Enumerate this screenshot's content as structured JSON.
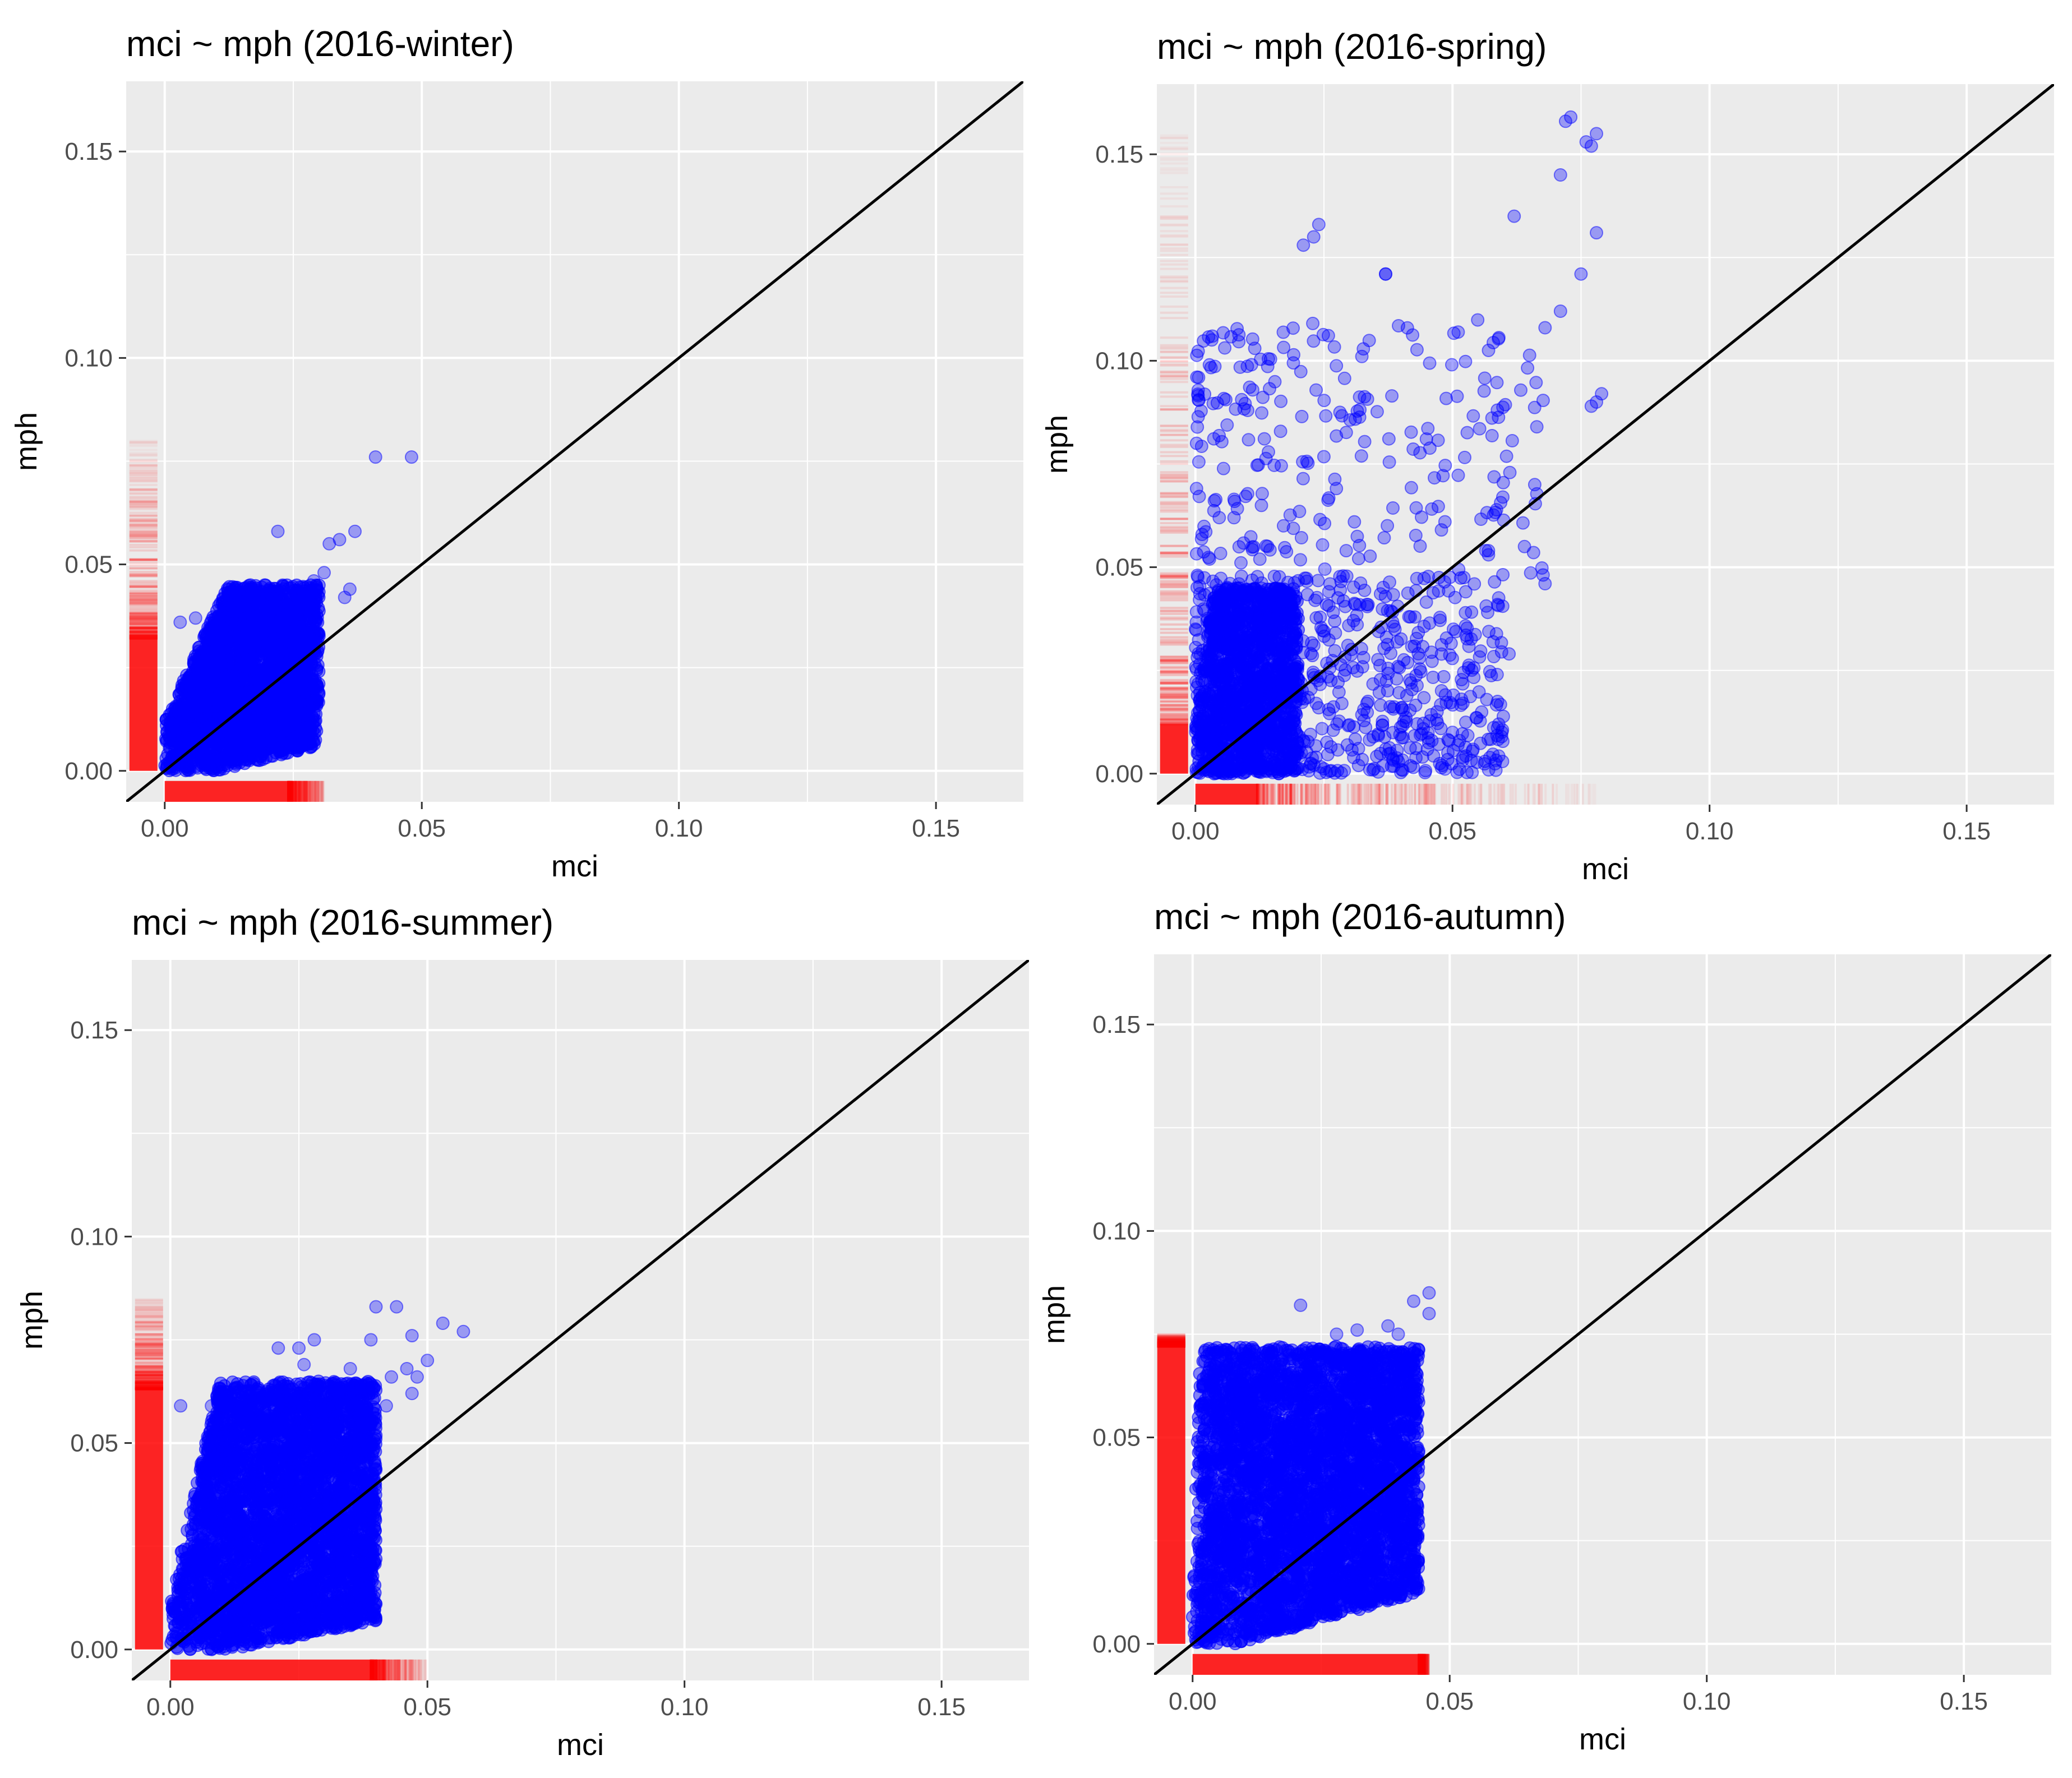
{
  "chart_data": [
    {
      "type": "scatter",
      "title": "mci ~ mph (2016-winter)",
      "xlabel": "mci",
      "ylabel": "mph",
      "xlim": [
        -0.0075,
        0.167
      ],
      "ylim": [
        -0.0075,
        0.167
      ],
      "xticks": [
        "0.00",
        "0.05",
        "0.10",
        "0.15"
      ],
      "yticks": [
        "0.00",
        "0.05",
        "0.10",
        "0.15"
      ],
      "reference_line": "y = x",
      "point_color": "#0000ff",
      "rug_color": "#ff0000",
      "cloud": {
        "x_max": 0.03,
        "y_max": 0.045,
        "y_min_ratio": 0.3,
        "y_max_ratio": 2.7,
        "count": 2600
      },
      "outliers": [
        [
          0.041,
          0.076
        ],
        [
          0.048,
          0.076
        ],
        [
          0.037,
          0.058
        ],
        [
          0.034,
          0.056
        ],
        [
          0.032,
          0.055
        ],
        [
          0.022,
          0.058
        ],
        [
          0.036,
          0.044
        ],
        [
          0.035,
          0.042
        ],
        [
          0.029,
          0.046
        ],
        [
          0.031,
          0.048
        ],
        [
          0.003,
          0.036
        ],
        [
          0.006,
          0.037
        ]
      ],
      "x_rug": {
        "dense_max": 0.024,
        "fade_max": 0.031
      },
      "y_rug": {
        "dense_max": 0.032,
        "fade_max": 0.08
      }
    },
    {
      "type": "scatter",
      "title": "mci ~ mph (2016-spring)",
      "xlabel": "mci",
      "ylabel": "mph",
      "xlim": [
        -0.0075,
        0.167
      ],
      "ylim": [
        -0.0075,
        0.167
      ],
      "xticks": [
        "0.00",
        "0.05",
        "0.10",
        "0.15"
      ],
      "yticks": [
        "0.00",
        "0.05",
        "0.10",
        "0.15"
      ],
      "reference_line": "y = x",
      "point_color": "#0000ff",
      "rug_color": "#ff0000",
      "cloud": {
        "x_max": 0.02,
        "y_max": 0.045,
        "y_min_ratio": 0.0,
        "y_max_ratio": 9.0,
        "count": 1200
      },
      "scatter_extra": {
        "count": 750,
        "x_max": 0.06,
        "y_max": 0.048
      },
      "scatter_sparse": {
        "count": 260,
        "x_max": 0.068,
        "y_max": 0.11
      },
      "outliers": [
        [
          0.072,
          0.158
        ],
        [
          0.073,
          0.159
        ],
        [
          0.078,
          0.155
        ],
        [
          0.077,
          0.152
        ],
        [
          0.076,
          0.153
        ],
        [
          0.071,
          0.145
        ],
        [
          0.078,
          0.131
        ],
        [
          0.062,
          0.135
        ],
        [
          0.075,
          0.121
        ],
        [
          0.024,
          0.133
        ],
        [
          0.023,
          0.13
        ],
        [
          0.021,
          0.128
        ],
        [
          0.037,
          0.121
        ],
        [
          0.037,
          0.121
        ],
        [
          0.071,
          0.112
        ],
        [
          0.068,
          0.108
        ],
        [
          0.079,
          0.092
        ],
        [
          0.078,
          0.09
        ],
        [
          0.077,
          0.089
        ],
        [
          0.066,
          0.07
        ],
        [
          0.068,
          0.046
        ],
        [
          0.064,
          0.055
        ],
        [
          0.057,
          0.054
        ],
        [
          0.057,
          0.053
        ],
        [
          0.061,
          0.029
        ],
        [
          0.059,
          0.012
        ],
        [
          0.052,
          0.004
        ],
        [
          0.048,
          0.002
        ],
        [
          0.046,
          0.008
        ],
        [
          0.05,
          0.01
        ]
      ],
      "x_rug": {
        "dense_max": 0.012,
        "fade_max": 0.078
      },
      "y_rug": {
        "dense_max": 0.012,
        "fade_max": 0.155
      }
    },
    {
      "type": "scatter",
      "title": "mci ~ mph (2016-summer)",
      "xlabel": "mci",
      "ylabel": "mph",
      "xlim": [
        -0.0075,
        0.167
      ],
      "ylim": [
        -0.0075,
        0.167
      ],
      "xticks": [
        "0.00",
        "0.05",
        "0.10",
        "0.15"
      ],
      "yticks": [
        "0.00",
        "0.05",
        "0.10",
        "0.15"
      ],
      "reference_line": "y = x",
      "point_color": "#0000ff",
      "rug_color": "#ff0000",
      "cloud": {
        "x_max": 0.04,
        "y_max": 0.065,
        "y_min_ratio": 0.25,
        "y_max_ratio": 5.5,
        "count": 3800
      },
      "outliers": [
        [
          0.04,
          0.083
        ],
        [
          0.044,
          0.083
        ],
        [
          0.053,
          0.079
        ],
        [
          0.057,
          0.077
        ],
        [
          0.047,
          0.076
        ],
        [
          0.039,
          0.075
        ],
        [
          0.028,
          0.075
        ],
        [
          0.021,
          0.073
        ],
        [
          0.025,
          0.073
        ],
        [
          0.026,
          0.069
        ],
        [
          0.035,
          0.068
        ],
        [
          0.048,
          0.066
        ],
        [
          0.05,
          0.07
        ],
        [
          0.046,
          0.068
        ],
        [
          0.043,
          0.066
        ],
        [
          0.008,
          0.059
        ],
        [
          0.002,
          0.059
        ],
        [
          0.031,
          0.061
        ],
        [
          0.047,
          0.062
        ],
        [
          0.042,
          0.059
        ]
      ],
      "x_rug": {
        "dense_max": 0.039,
        "fade_max": 0.05
      },
      "y_rug": {
        "dense_max": 0.063,
        "fade_max": 0.085
      }
    },
    {
      "type": "scatter",
      "title": "mci ~ mph (2016-autumn)",
      "xlabel": "mci",
      "ylabel": "mph",
      "xlim": [
        -0.0075,
        0.167
      ],
      "ylim": [
        -0.0075,
        0.167
      ],
      "xticks": [
        "0.00",
        "0.05",
        "0.10",
        "0.15"
      ],
      "yticks": [
        "0.00",
        "0.05",
        "0.10",
        "0.15"
      ],
      "reference_line": "y = x",
      "point_color": "#0000ff",
      "rug_color": "#ff0000",
      "cloud": {
        "x_max": 0.044,
        "y_max": 0.072,
        "y_min_ratio": 0.35,
        "y_max_ratio": 40.0,
        "count": 4200
      },
      "outliers": [
        [
          0.046,
          0.085
        ],
        [
          0.043,
          0.083
        ],
        [
          0.046,
          0.08
        ],
        [
          0.021,
          0.082
        ],
        [
          0.038,
          0.077
        ],
        [
          0.032,
          0.076
        ],
        [
          0.028,
          0.075
        ],
        [
          0.04,
          0.075
        ],
        [
          0.015,
          0.004
        ],
        [
          0.01,
          0.003
        ],
        [
          0.015,
          0.024
        ],
        [
          0.025,
          0.026
        ]
      ],
      "x_rug": {
        "dense_max": 0.044,
        "fade_max": 0.046
      },
      "y_rug": {
        "dense_max": 0.072,
        "fade_max": 0.075
      }
    }
  ]
}
